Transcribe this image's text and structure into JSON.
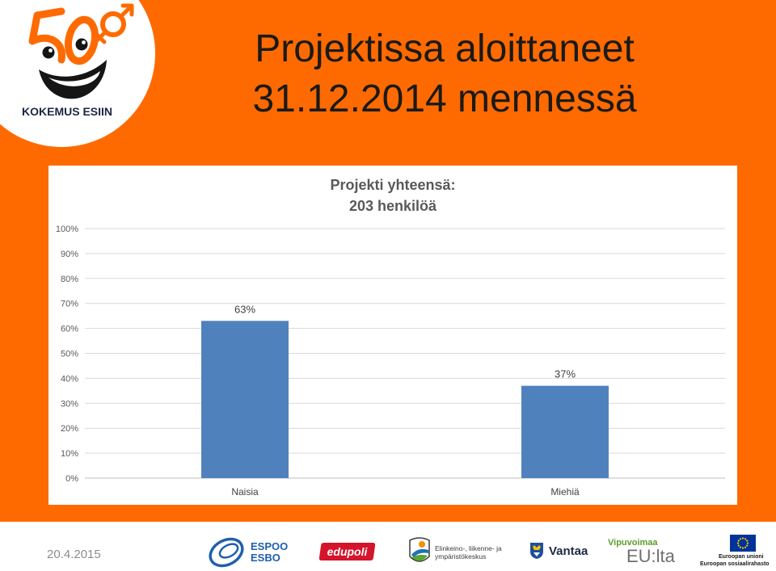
{
  "slide": {
    "background_color": "#FF6A00",
    "title_lines": [
      "Projektissa aloittaneet",
      "31.12.2014 mennessä"
    ],
    "date": "20.4.2015"
  },
  "logo": {
    "text": "KOKEMUS ESIIN",
    "icon": "smiley-50-plus-icon",
    "accent_color": "#FF6A00",
    "text_color": "#1c2745"
  },
  "chart_data": {
    "type": "bar",
    "title_lines": [
      "Projekti yhteensä:",
      "203 henkilöä"
    ],
    "categories": [
      "Naisia",
      "Miehiä"
    ],
    "values": [
      63,
      37
    ],
    "data_labels": [
      "63%",
      "37%"
    ],
    "ylim": [
      0,
      100
    ],
    "yticks": [
      0,
      10,
      20,
      30,
      40,
      50,
      60,
      70,
      80,
      90,
      100
    ],
    "ytick_labels": [
      "0%",
      "10%",
      "20%",
      "30%",
      "40%",
      "50%",
      "60%",
      "70%",
      "80%",
      "90%",
      "100%"
    ],
    "xlabel": "",
    "ylabel": "",
    "grid": true,
    "legend": "none",
    "bar_color": "#4F81BD"
  },
  "footer_logos": {
    "espoo": {
      "icon": "espoo-swirl-icon",
      "lines": [
        "ESPOO",
        "ESBO"
      ],
      "color": "#1f5fae"
    },
    "edupoli": {
      "text": "edupoli",
      "color": "#d4152b"
    },
    "ely": {
      "icon": "ely-centre-icon",
      "lines": [
        "Elinkeino-, liikenne- ja",
        "ympäristökeskus"
      ]
    },
    "vantaa": {
      "icon": "vantaa-shield-icon",
      "text": "Vantaa"
    },
    "vipuvoimaa": {
      "lines": [
        "Vipuvoimaa",
        "EU:lta"
      ],
      "color": "#5e9c2a"
    },
    "eu": {
      "icon": "eu-flag-icon",
      "lines": [
        "Euroopan unioni",
        "Euroopan sosiaalirahasto"
      ]
    }
  }
}
